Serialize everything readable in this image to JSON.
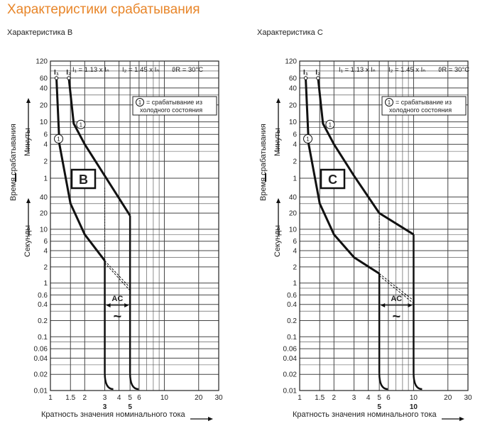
{
  "page": {
    "title": "Характеристики срабатывания",
    "ylabel_main": "Время срабатывания",
    "ylabel_minutes": "Минуты",
    "ylabel_seconds": "Секунды"
  },
  "colors": {
    "title": "#e8862a",
    "curve": "#111111",
    "grid": "#444444"
  },
  "chart_data": [
    {
      "type": "line",
      "title": "Характеристика B",
      "badge": "B",
      "xlabel": "Кратность значения номинального тока",
      "ylabel": "Время срабатывания",
      "xscale": "log",
      "yscale": "log",
      "xlim": [
        1,
        30
      ],
      "x_ticks": [
        "1",
        "1.5",
        "2",
        "3",
        "4",
        "5",
        "6",
        "10",
        "20",
        "30"
      ],
      "y_ticks_minutes": [
        "120",
        "60",
        "40",
        "20",
        "10",
        "6",
        "4",
        "2",
        "1"
      ],
      "y_ticks_seconds": [
        "40",
        "20",
        "10",
        "6",
        "4",
        "2",
        "1",
        "0.6",
        "0.4",
        "0.2",
        "0.1",
        "0.06",
        "0.04",
        "0.02",
        "0.01"
      ],
      "i1_label": "I₁",
      "i2_label": "I₂",
      "formula_i1": "I₁ = 1.13 x Iₙ",
      "formula_i2": "I₂ = 1.45 x Iₙ",
      "formula_theta": "ϑR = 30°C",
      "note_num": "1",
      "note_line1": "= срабатывание из",
      "note_line2": "холодного состояния",
      "ac_label": "AC",
      "ac_symbol": "~",
      "bold_x_ticks": [
        "3",
        "5"
      ],
      "series": [
        {
          "name": "upper",
          "x": [
            1.45,
            1.6,
            2.0,
            3.0,
            5.0
          ],
          "y": [
            3600,
            560,
            240,
            66,
            18
          ]
        },
        {
          "name": "lower",
          "x": [
            1.13,
            1.2,
            1.5,
            2.0,
            3.0
          ],
          "y": [
            3600,
            240,
            30,
            8,
            2.6
          ]
        }
      ],
      "magnetic_band_x": [
        3,
        5
      ],
      "magnetic_time_max": 0.02
    },
    {
      "type": "line",
      "title": "Характеристика C",
      "badge": "C",
      "xlabel": "Кратность значения номинального тока",
      "ylabel": "Время срабатывания",
      "xscale": "log",
      "yscale": "log",
      "xlim": [
        1,
        30
      ],
      "x_ticks": [
        "1",
        "1.5",
        "2",
        "3",
        "4",
        "5",
        "6",
        "10",
        "20",
        "30"
      ],
      "y_ticks_minutes": [
        "120",
        "60",
        "40",
        "20",
        "10",
        "6",
        "4",
        "2",
        "1"
      ],
      "y_ticks_seconds": [
        "40",
        "20",
        "10",
        "6",
        "4",
        "2",
        "1",
        "0.6",
        "0.4",
        "0.2",
        "0.1",
        "0.06",
        "0.04",
        "0.02",
        "0.01"
      ],
      "i1_label": "I₁",
      "i2_label": "I₂",
      "formula_i1": "I₁ = 1.13 x Iₙ",
      "formula_i2": "I₂ = 1.45 x Iₙ",
      "formula_theta": "ϑR = 30°C",
      "note_num": "1",
      "note_line1": "= срабатывание из",
      "note_line2": "холодного состояния",
      "ac_label": "AC",
      "ac_symbol": "~",
      "bold_x_ticks": [
        "5",
        "10"
      ],
      "series": [
        {
          "name": "upper",
          "x": [
            1.45,
            1.6,
            2.0,
            3.0,
            5.0,
            10.0
          ],
          "y": [
            3600,
            560,
            240,
            66,
            20,
            8
          ]
        },
        {
          "name": "lower",
          "x": [
            1.13,
            1.2,
            1.5,
            2.0,
            3.0,
            5.0
          ],
          "y": [
            3600,
            240,
            30,
            8,
            3,
            1.5
          ]
        }
      ],
      "magnetic_band_x": [
        5,
        10
      ],
      "magnetic_time_max": 0.02
    }
  ]
}
